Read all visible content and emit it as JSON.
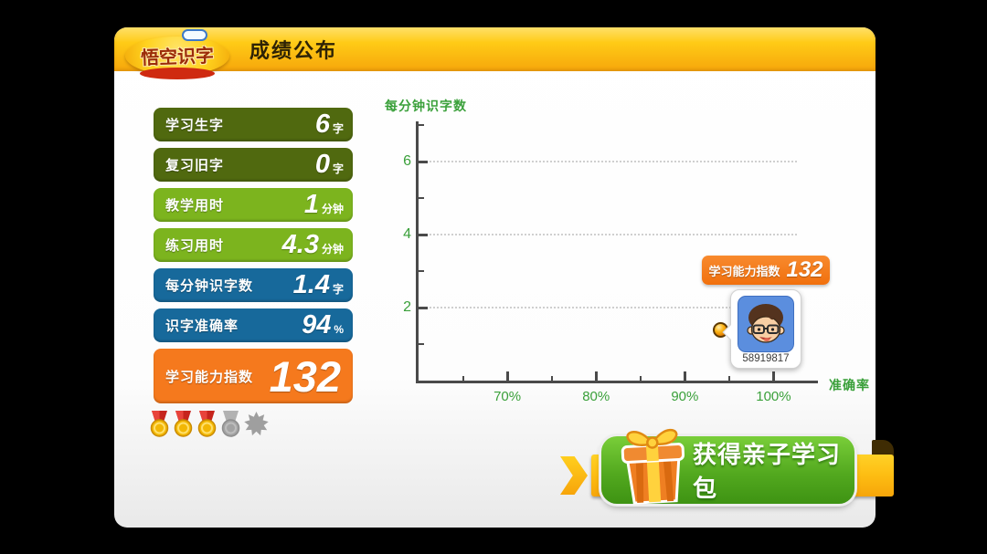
{
  "app": {
    "logo_text": "悟空识字",
    "header_title": "成绩公布"
  },
  "stats": [
    {
      "label": "学习生字",
      "value": "6",
      "unit": "字",
      "color": "#50690f"
    },
    {
      "label": "复习旧字",
      "value": "0",
      "unit": "字",
      "color": "#50690f"
    },
    {
      "label": "教学用时",
      "value": "1",
      "unit": "分钟",
      "color": "#7cb41e"
    },
    {
      "label": "练习用时",
      "value": "4.3",
      "unit": "分钟",
      "color": "#7cb41e"
    },
    {
      "label": "每分钟识字数",
      "value": "1.4",
      "unit": "字",
      "color": "#17699b"
    },
    {
      "label": "识字准确率",
      "value": "94",
      "unit": "%",
      "color": "#17699b"
    },
    {
      "label": "学习能力指数",
      "value": "132",
      "unit": "",
      "color": "#f5791d"
    }
  ],
  "medals": {
    "items": [
      "gold",
      "gold",
      "gold",
      "gray-medal",
      "gray-star"
    ],
    "earned_count": 3
  },
  "score_badge": {
    "label": "学习能力指数",
    "value": "132"
  },
  "player": {
    "id": "58919817"
  },
  "chart_data": {
    "type": "scatter",
    "title": "",
    "xlabel": "准确率",
    "ylabel": "每分钟识字数",
    "xlim": [
      60,
      105
    ],
    "ylim": [
      0,
      7.1
    ],
    "x_major_ticks": [
      {
        "v": 70,
        "label": "70%"
      },
      {
        "v": 80,
        "label": "80%"
      },
      {
        "v": 90,
        "label": "90%"
      },
      {
        "v": 100,
        "label": "100%"
      }
    ],
    "x_minor_ticks": [
      65,
      75,
      85,
      95
    ],
    "y_major_ticks": [
      {
        "v": 2,
        "label": "2"
      },
      {
        "v": 4,
        "label": "4"
      },
      {
        "v": 6,
        "label": "6"
      }
    ],
    "y_minor_ticks": [
      1,
      3,
      5,
      7
    ],
    "grid": "dotted horizontal lines at y = 2, 4, 6",
    "legend": "none",
    "points": [
      {
        "x": 94,
        "y": 1.4,
        "label": "58919817",
        "marker": "orange-ball"
      }
    ]
  },
  "footer": {
    "button_label": "获得亲子学习包"
  },
  "theme": {
    "background": "#000000",
    "panel": "#ffffff",
    "header_gradient": [
      "#ffe06a",
      "#f6a60b"
    ],
    "stat_dark_green": "#50690f",
    "stat_green": "#7cb41e",
    "stat_blue": "#17699b",
    "stat_orange": "#f5791d",
    "chart_text_green": "#3aa03a",
    "axis_gray": "#4a4a4a",
    "button_green": [
      "#79ce39",
      "#3e9313"
    ],
    "ribbon_yellow": [
      "#ffd127",
      "#f6a50a"
    ],
    "avatar_blue": "#5b8ede",
    "dot_orange": "#fdb515"
  }
}
